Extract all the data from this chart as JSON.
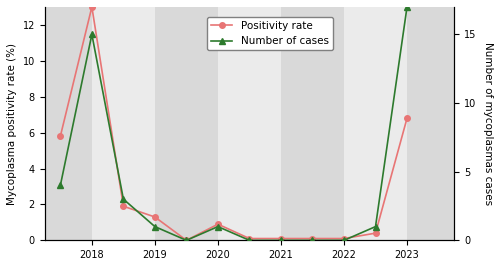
{
  "x_positions": [
    2017.5,
    2018.0,
    2018.5,
    2019.0,
    2019.5,
    2020.0,
    2020.5,
    2021.0,
    2021.5,
    2022.0,
    2022.5,
    2023.0,
    2023.5
  ],
  "positivity_rate": [
    5.8,
    13.0,
    1.9,
    1.3,
    0.0,
    0.9,
    0.1,
    0.1,
    0.1,
    0.1,
    0.4,
    6.8,
    null
  ],
  "num_cases": [
    4,
    15,
    3,
    1,
    0,
    1,
    0,
    0,
    0,
    0,
    1,
    17,
    null
  ],
  "positivity_rate_right_scale": [
    0,
    0,
    0,
    0,
    0,
    0,
    0,
    0,
    0,
    0,
    0,
    0,
    0
  ],
  "right_ylim": [
    0,
    17
  ],
  "left_ylim": [
    0,
    13
  ],
  "left_yticks": [
    0,
    2,
    4,
    6,
    8,
    10,
    12
  ],
  "right_yticks": [
    0,
    5,
    10,
    15
  ],
  "xticks": [
    2018,
    2019,
    2020,
    2021,
    2022,
    2023
  ],
  "xlabel": "",
  "ylabel_left": "Mycoplasma positivity rate (%)",
  "ylabel_right": "Number of mycoplasmas cases",
  "legend_labels": [
    "Positivity rate",
    "Number of cases"
  ],
  "line_color_positivity": "#e87575",
  "line_color_cases": "#2d7a2d",
  "marker_positivity": "o",
  "marker_cases": "^",
  "bg_colors": [
    "#d9d9d9",
    "#ebebeb"
  ],
  "band_edges": [
    2017.25,
    2018.0,
    2019.0,
    2020.0,
    2021.0,
    2022.0,
    2023.0,
    2023.75
  ],
  "figsize": [
    5.0,
    2.67
  ],
  "dpi": 100,
  "fontsize_labels": 7.5,
  "fontsize_ticks": 7,
  "fontsize_legend": 7.5
}
